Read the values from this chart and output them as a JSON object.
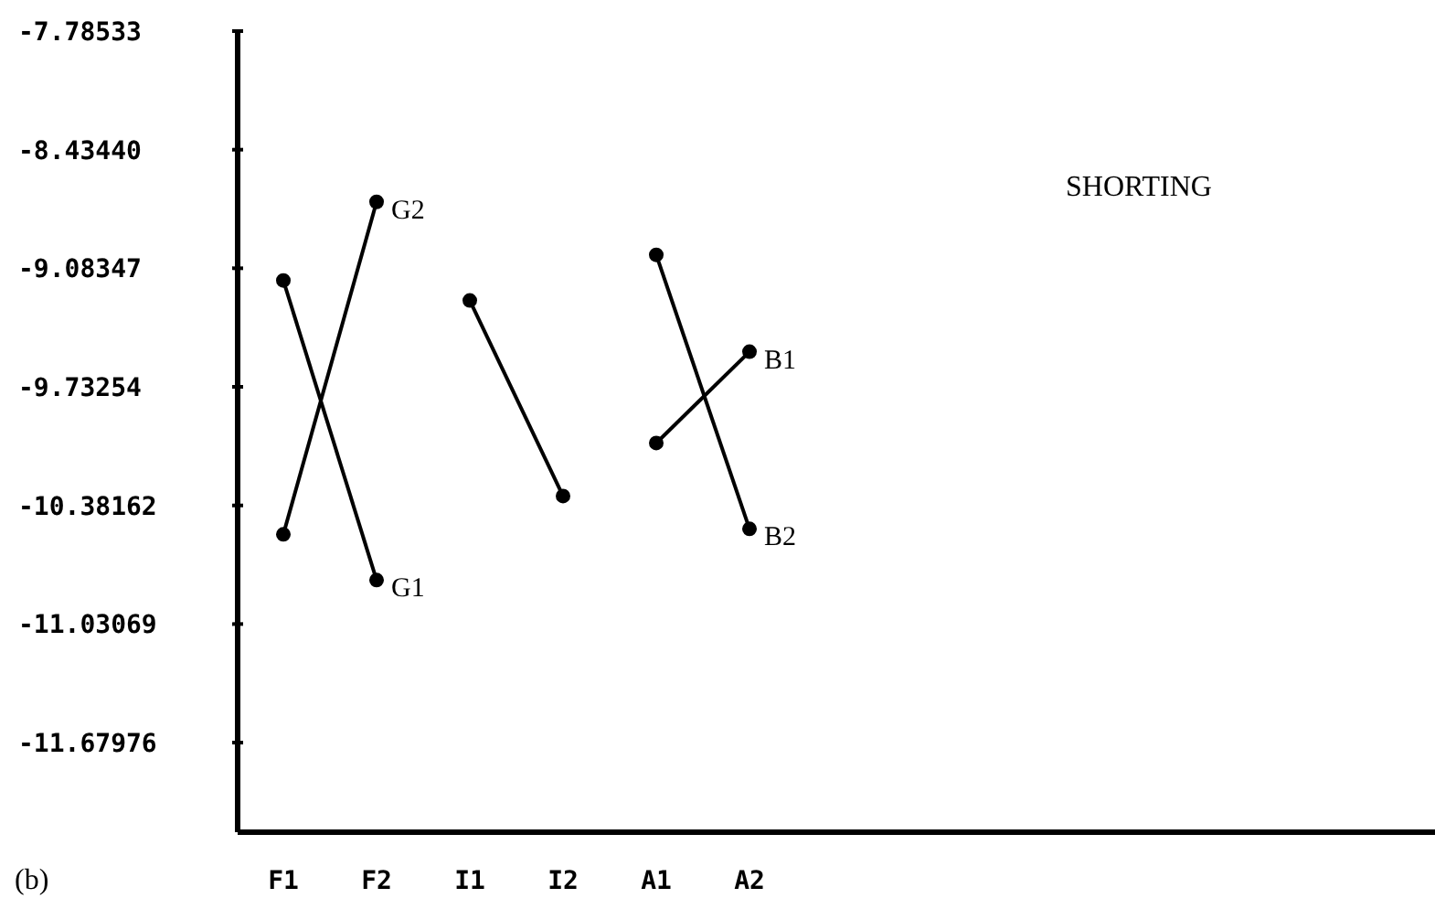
{
  "chart_data": {
    "type": "line",
    "categories": [
      "F1",
      "F2",
      "I1",
      "I2",
      "A1",
      "A2"
    ],
    "series": [
      {
        "name": "G1",
        "color": "#000000",
        "values": [
          -9.15,
          -10.79,
          null,
          null,
          null,
          null
        ]
      },
      {
        "name": "G2",
        "color": "#000000",
        "values": [
          -10.54,
          -8.72,
          null,
          null,
          null,
          null
        ]
      },
      {
        "color": "#000000",
        "values": [
          null,
          null,
          -9.26,
          -10.33,
          null,
          null
        ]
      },
      {
        "name": "B1",
        "color": "#000000",
        "values": [
          null,
          null,
          null,
          null,
          -10.04,
          -9.54
        ]
      },
      {
        "name": "B2",
        "color": "#000000",
        "values": [
          null,
          null,
          null,
          null,
          -9.01,
          -10.51
        ]
      }
    ],
    "ylim": [
      -12.17,
      -7.78533
    ],
    "yticks": [
      -7.78533,
      {
        "value": -8.4344,
        "label": "-8.43440"
      },
      -9.08347,
      -9.73254,
      -10.38162,
      -11.03069,
      -11.67976
    ],
    "annotations": [
      "SHORTING",
      "(b)"
    ],
    "marker": "circle",
    "line_style": "solid",
    "grid": false
  }
}
